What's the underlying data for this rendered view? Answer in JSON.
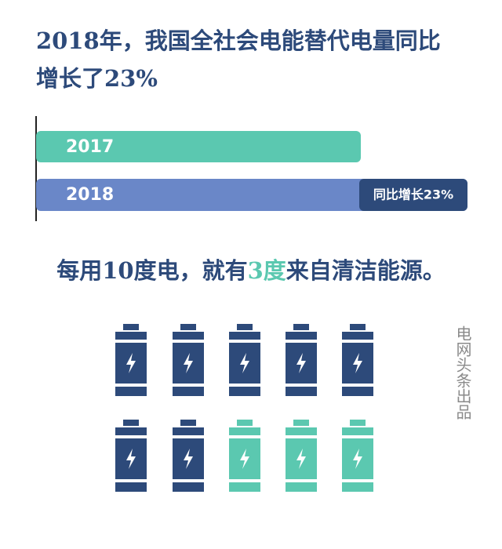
{
  "header": {
    "title_lines": [
      "2018年，我国全社会电能替代电量同比",
      "增长了23%"
    ]
  },
  "bars": [
    {
      "label": "2017"
    },
    {
      "label": "2018",
      "badge": "同比增长23%"
    }
  ],
  "sentence": {
    "before": "每用10度电，就有",
    "highlight": "3度",
    "after": "来自清洁能源。"
  },
  "source": "电网头条出品"
}
